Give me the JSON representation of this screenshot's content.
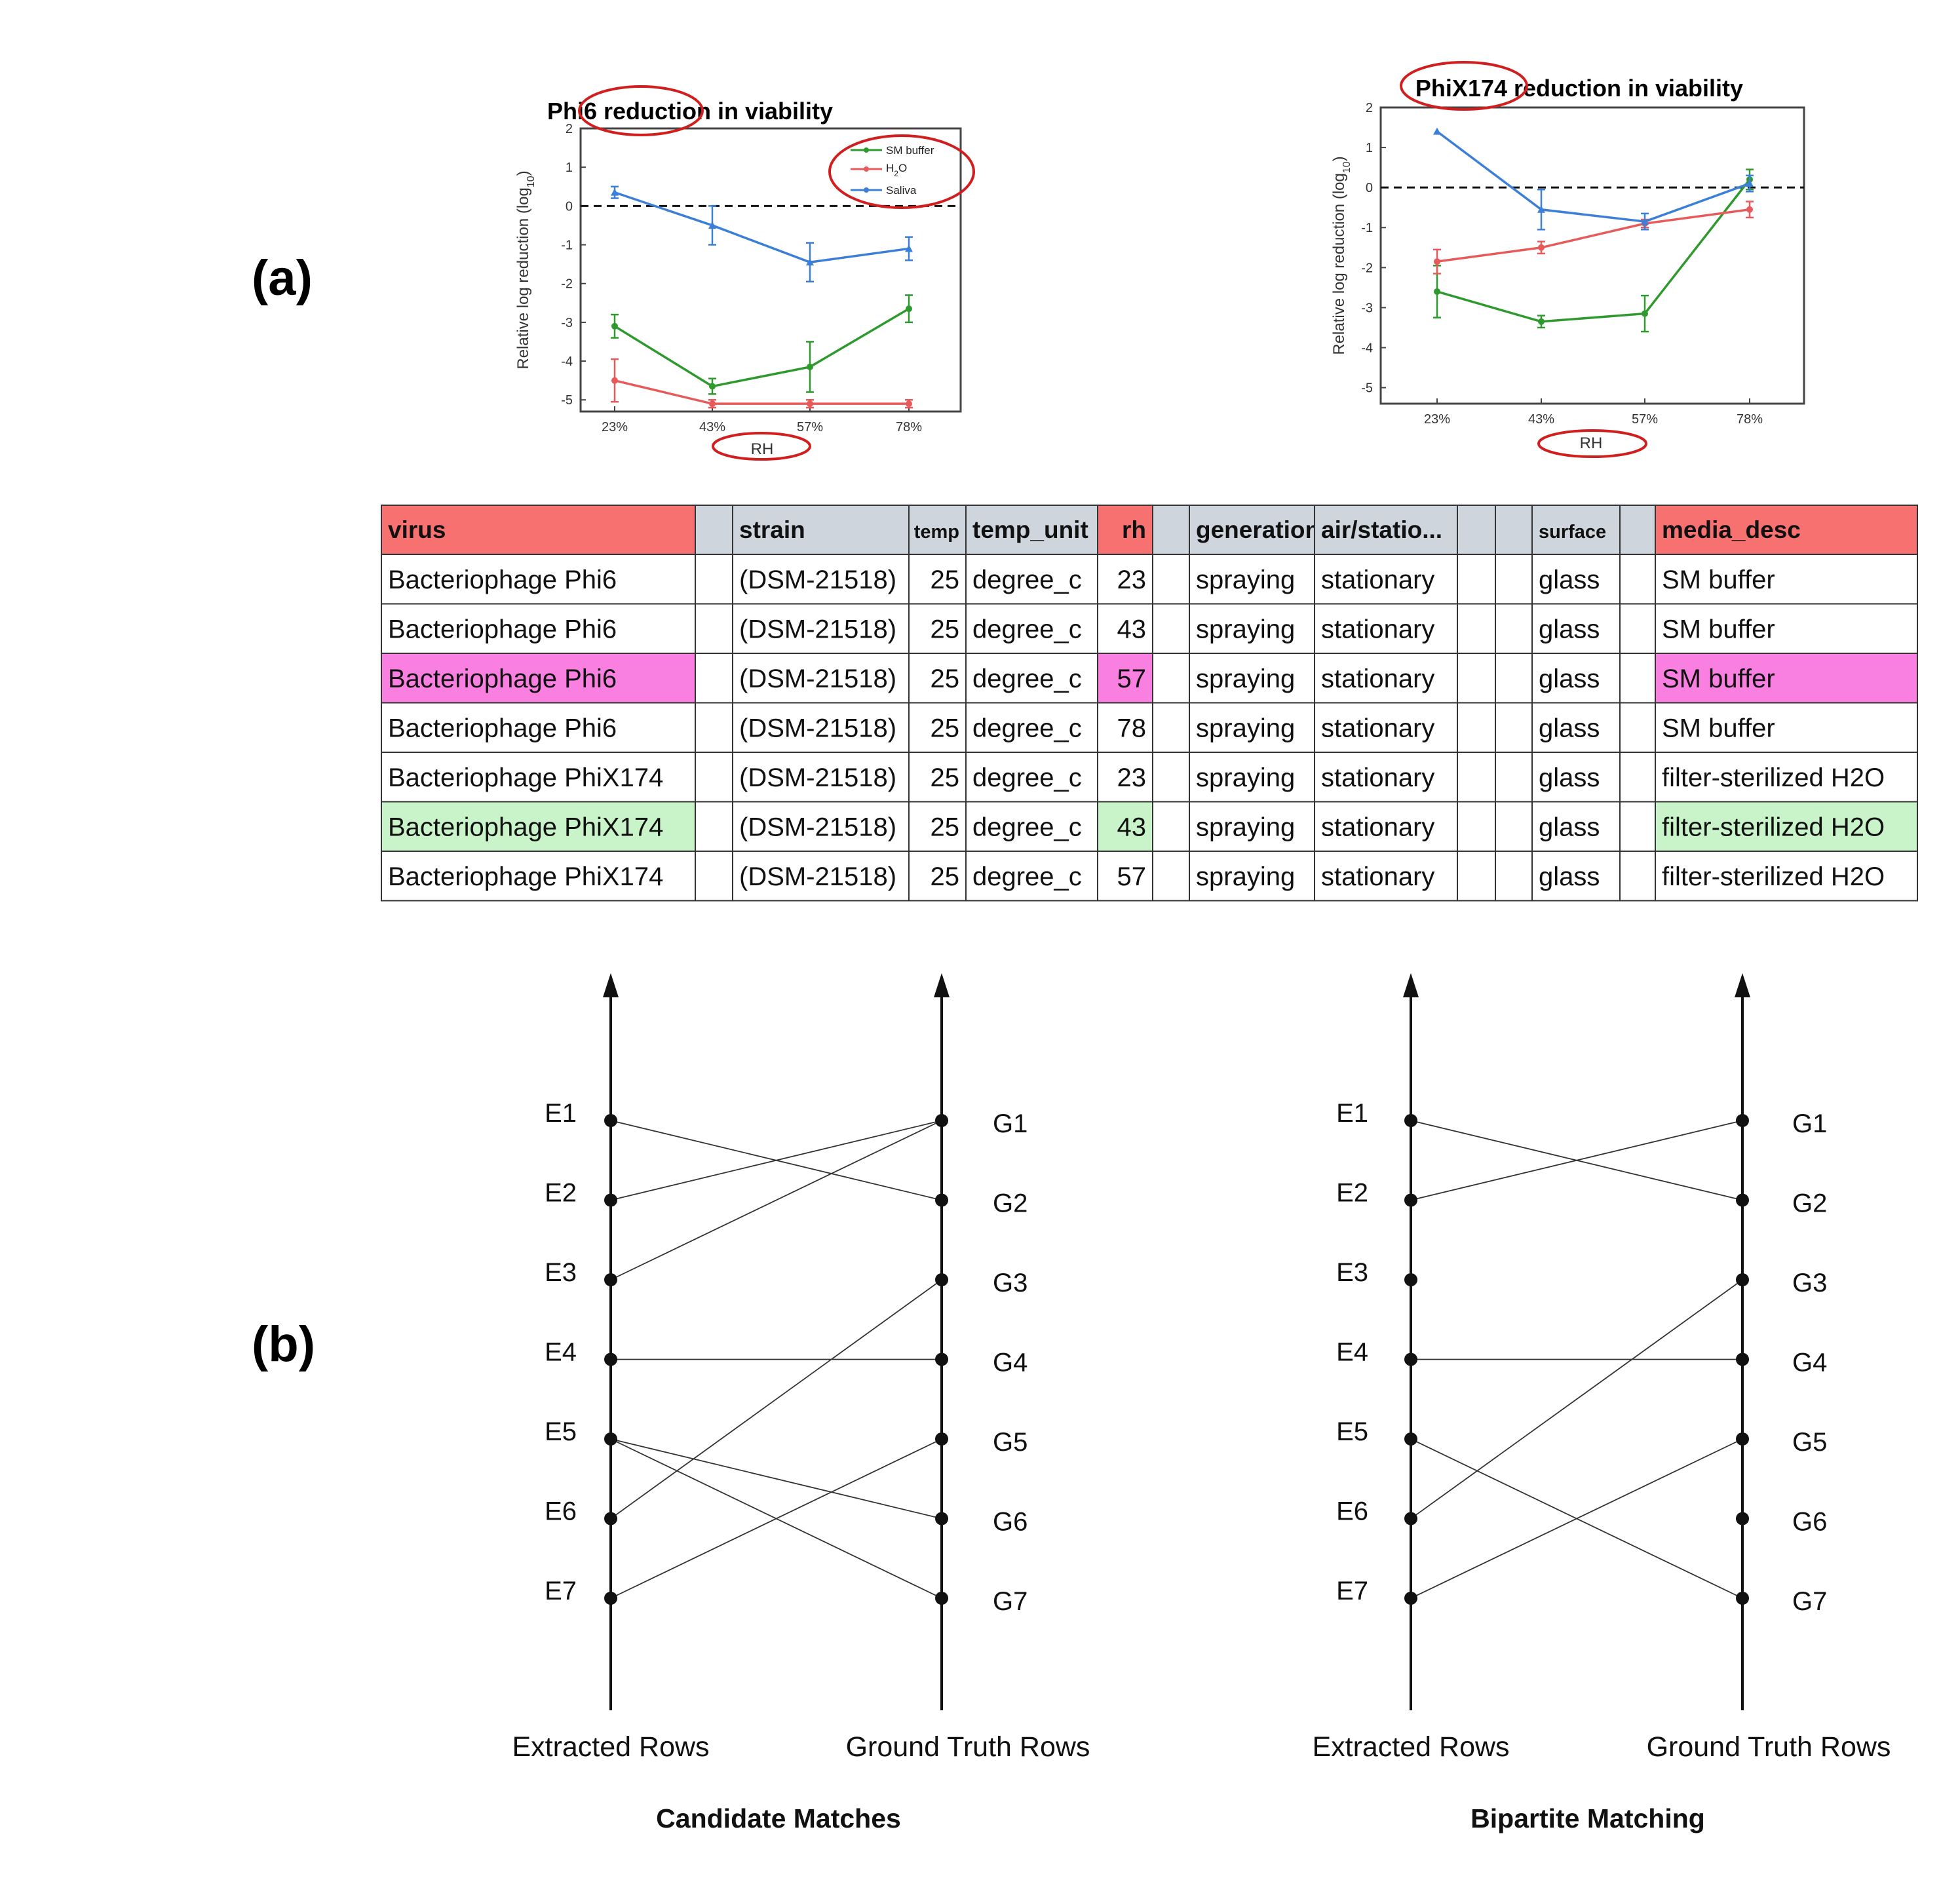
{
  "labels": {
    "panel_a": "(a)",
    "panel_b": "(b)"
  },
  "colors": {
    "sm_buffer": "#2e9a2e",
    "h2o": "#e85a5a",
    "saliva": "#3b7fd9",
    "highlight_oval": "#d11f1f",
    "header_red": "#f87171",
    "header_gray": "#cfd5dc",
    "row_pink": "#f97fe0",
    "row_green": "#c9f3c9"
  },
  "chart_data": [
    {
      "type": "line",
      "title": "Phi6 reduction in viability",
      "xlabel": "RH",
      "ylabel": "Relative log reduction (log10)",
      "categories": [
        "23%",
        "43%",
        "57%",
        "78%"
      ],
      "ylim": [
        -5.3,
        2
      ],
      "yticks": [
        2,
        1,
        0,
        -1,
        -2,
        -3,
        -4,
        -5
      ],
      "reference_line": 0,
      "legend": "top-right",
      "series": [
        {
          "name": "SM buffer",
          "color_key": "sm_buffer",
          "values": [
            -3.1,
            -4.65,
            -4.15,
            -2.65
          ],
          "errors": [
            0.3,
            0.2,
            0.65,
            0.35
          ]
        },
        {
          "name": "H2O",
          "color_key": "h2o",
          "values": [
            -4.5,
            -5.1,
            -5.1,
            -5.1
          ],
          "errors": [
            0.55,
            0.1,
            0.1,
            0.1
          ]
        },
        {
          "name": "Saliva",
          "color_key": "saliva",
          "values": [
            0.35,
            -0.5,
            -1.45,
            -1.1
          ],
          "errors": [
            0.15,
            0.5,
            0.5,
            0.3
          ]
        }
      ]
    },
    {
      "type": "line",
      "title": "PhiX174 reduction in viability",
      "xlabel": "RH",
      "ylabel": "Relative log reduction (log10)",
      "categories": [
        "23%",
        "43%",
        "57%",
        "78%"
      ],
      "ylim": [
        -5.4,
        2
      ],
      "yticks": [
        2,
        1,
        0,
        -1,
        -2,
        -3,
        -4,
        -5
      ],
      "reference_line": 0,
      "legend": "none",
      "series": [
        {
          "name": "SM buffer",
          "color_key": "sm_buffer",
          "values": [
            -2.6,
            -3.35,
            -3.15,
            0.2
          ],
          "errors": [
            0.65,
            0.15,
            0.45,
            0.25
          ]
        },
        {
          "name": "H2O",
          "color_key": "h2o",
          "values": [
            -1.85,
            -1.5,
            -0.9,
            -0.55
          ],
          "errors": [
            0.3,
            0.15,
            0.1,
            0.2
          ]
        },
        {
          "name": "Saliva",
          "color_key": "saliva",
          "values": [
            1.4,
            -0.55,
            -0.85,
            0.1
          ],
          "errors": [
            0,
            0.5,
            0.2,
            0.2
          ]
        }
      ]
    }
  ],
  "legend_labels": {
    "sm_buffer": "SM buffer",
    "h2o_main": "H",
    "h2o_sub": "2",
    "h2o_tail": "O",
    "saliva": "Saliva"
  },
  "axis_text": {
    "chart1_title": "Phi6 reduction in viability",
    "chart2_title": "PhiX174 reduction in viability",
    "xlabel": "RH",
    "ylabel_main": "Relative log reduction (log",
    "ylabel_sub": "10",
    "ylabel_tail": ")"
  },
  "table": {
    "headers": [
      "virus",
      "",
      "strain",
      "temp",
      "temp_unit",
      "rh",
      "",
      "generation",
      "air/statio...",
      "",
      "",
      "surface",
      "",
      "media_desc"
    ],
    "rows": [
      [
        "Bacteriophage Phi6",
        "",
        "(DSM-21518)",
        "25",
        "degree_c",
        "23",
        "",
        "spraying",
        "stationary",
        "",
        "",
        "glass",
        "",
        "SM buffer"
      ],
      [
        "Bacteriophage Phi6",
        "",
        "(DSM-21518)",
        "25",
        "degree_c",
        "43",
        "",
        "spraying",
        "stationary",
        "",
        "",
        "glass",
        "",
        "SM buffer"
      ],
      [
        "Bacteriophage Phi6",
        "",
        "(DSM-21518)",
        "25",
        "degree_c",
        "57",
        "",
        "spraying",
        "stationary",
        "",
        "",
        "glass",
        "",
        "SM buffer"
      ],
      [
        "Bacteriophage Phi6",
        "",
        "(DSM-21518)",
        "25",
        "degree_c",
        "78",
        "",
        "spraying",
        "stationary",
        "",
        "",
        "glass",
        "",
        "SM buffer"
      ],
      [
        "Bacteriophage PhiX174",
        "",
        "(DSM-21518)",
        "25",
        "degree_c",
        "23",
        "",
        "spraying",
        "stationary",
        "",
        "",
        "glass",
        "",
        "filter-sterilized H2O"
      ],
      [
        "Bacteriophage PhiX174",
        "",
        "(DSM-21518)",
        "25",
        "degree_c",
        "43",
        "",
        "spraying",
        "stationary",
        "",
        "",
        "glass",
        "",
        "filter-sterilized H2O"
      ],
      [
        "Bacteriophage PhiX174",
        "",
        "(DSM-21518)",
        "25",
        "degree_c",
        "57",
        "",
        "spraying",
        "stationary",
        "",
        "",
        "glass",
        "",
        "filter-sterilized H2O"
      ]
    ],
    "highlights": [
      {
        "row": 2,
        "columns": [
          0,
          5,
          13
        ],
        "color_key": "row_pink"
      },
      {
        "row": 5,
        "columns": [
          0,
          5,
          13
        ],
        "color_key": "row_green"
      }
    ]
  },
  "matching": {
    "extracted_nodes": [
      "E1",
      "E2",
      "E3",
      "E4",
      "E5",
      "E6",
      "E7"
    ],
    "truth_nodes": [
      "G1",
      "G2",
      "G3",
      "G4",
      "G5",
      "G6",
      "G7"
    ],
    "extracted_label": "Extracted Rows",
    "truth_label": "Ground Truth Rows",
    "diagrams": [
      {
        "caption": "Candidate Matches",
        "edges": [
          [
            "E1",
            "G2"
          ],
          [
            "E2",
            "G1"
          ],
          [
            "E3",
            "G1"
          ],
          [
            "E4",
            "G4"
          ],
          [
            "E5",
            "G6"
          ],
          [
            "E5",
            "G7"
          ],
          [
            "E6",
            "G3"
          ],
          [
            "E7",
            "G5"
          ]
        ]
      },
      {
        "caption": "Bipartite Matching",
        "edges": [
          [
            "E1",
            "G2"
          ],
          [
            "E2",
            "G1"
          ],
          [
            "E4",
            "G4"
          ],
          [
            "E5",
            "G7"
          ],
          [
            "E6",
            "G3"
          ],
          [
            "E7",
            "G5"
          ]
        ]
      }
    ]
  }
}
